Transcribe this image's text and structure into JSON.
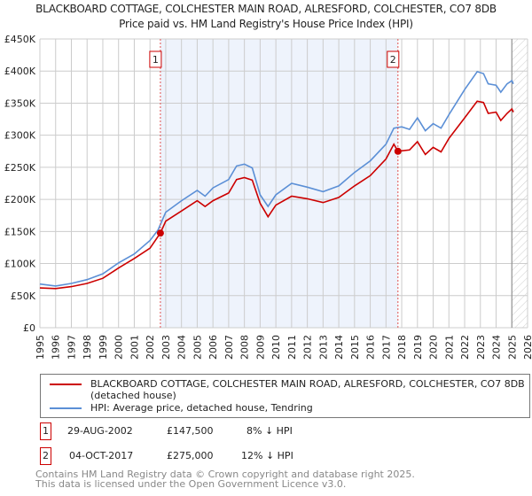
{
  "title": "BLACKBOARD COTTAGE, COLCHESTER MAIN ROAD, ALRESFORD, COLCHESTER, CO7 8DB",
  "subtitle": "Price paid vs. HM Land Registry's House Price Index (HPI)",
  "chart_data": {
    "type": "line",
    "xlim": [
      1995,
      2026
    ],
    "ylim": [
      0,
      450000
    ],
    "x_ticks": [
      "1995",
      "1996",
      "1997",
      "1998",
      "1999",
      "2000",
      "2001",
      "2002",
      "2003",
      "2004",
      "2005",
      "2006",
      "2007",
      "2008",
      "2009",
      "2010",
      "2011",
      "2012",
      "2013",
      "2014",
      "2015",
      "2016",
      "2017",
      "2018",
      "2019",
      "2020",
      "2021",
      "2022",
      "2023",
      "2024",
      "2025",
      "2026"
    ],
    "y_ticks": [
      {
        "v": 0,
        "label": "£0"
      },
      {
        "v": 50000,
        "label": "£50K"
      },
      {
        "v": 100000,
        "label": "£100K"
      },
      {
        "v": 150000,
        "label": "£150K"
      },
      {
        "v": 200000,
        "label": "£200K"
      },
      {
        "v": 250000,
        "label": "£250K"
      },
      {
        "v": 300000,
        "label": "£300K"
      },
      {
        "v": 350000,
        "label": "£350K"
      },
      {
        "v": 400000,
        "label": "£400K"
      },
      {
        "v": 450000,
        "label": "£450K"
      }
    ],
    "grid": true,
    "series": [
      {
        "name": "BLACKBOARD COTTAGE, COLCHESTER MAIN ROAD, ALRESFORD, COLCHESTER, CO7 8DB (detached house)",
        "color": "#cc0000",
        "x": [
          1995,
          1996,
          1997,
          1998,
          1999,
          2000,
          2001,
          2002,
          2002.66,
          2003,
          2004,
          2005,
          2005.5,
          2006,
          2007,
          2007.5,
          2008,
          2008.5,
          2009,
          2009.5,
          2010,
          2011,
          2012,
          2013,
          2014,
          2015,
          2016,
          2017,
          2017.5,
          2017.76,
          2018.5,
          2019,
          2019.5,
          2020,
          2020.5,
          2021,
          2022,
          2022.8,
          2023.2,
          2023.5,
          2024,
          2024.3,
          2024.7,
          2025,
          2025.1
        ],
        "y": [
          62000,
          61000,
          64000,
          69000,
          77000,
          93000,
          108000,
          124000,
          147500,
          166000,
          182000,
          198000,
          189000,
          198000,
          210000,
          231000,
          234000,
          230000,
          194000,
          173000,
          191000,
          205000,
          201000,
          195000,
          203000,
          221000,
          237000,
          263000,
          286000,
          275000,
          277000,
          290000,
          270000,
          281000,
          274000,
          295000,
          327000,
          353000,
          351000,
          334000,
          336000,
          323000,
          334000,
          341000,
          336000
        ]
      },
      {
        "name": "HPI: Average price, detached house, Tendring",
        "color": "#5b8fd6",
        "x": [
          1995,
          1996,
          1997,
          1998,
          1999,
          2000,
          2001,
          2002,
          2002.5,
          2003,
          2004,
          2005,
          2005.5,
          2006,
          2007,
          2007.5,
          2008,
          2008.5,
          2009,
          2009.5,
          2010,
          2011,
          2012,
          2013,
          2014,
          2015,
          2016,
          2017,
          2017.5,
          2018,
          2018.5,
          2019,
          2019.5,
          2020,
          2020.5,
          2021,
          2022,
          2022.8,
          2023.2,
          2023.5,
          2024,
          2024.3,
          2024.7,
          2025,
          2025.1
        ],
        "y": [
          68000,
          65000,
          69000,
          75000,
          84000,
          101000,
          115000,
          136000,
          152000,
          180000,
          198000,
          214000,
          205000,
          218000,
          231000,
          252000,
          255000,
          249000,
          207000,
          189000,
          207000,
          225000,
          219000,
          212000,
          221000,
          242000,
          260000,
          286000,
          311000,
          313000,
          309000,
          327000,
          307000,
          318000,
          311000,
          332000,
          371000,
          399000,
          396000,
          380000,
          378000,
          367000,
          380000,
          385000,
          380000
        ]
      }
    ],
    "annotations": [
      {
        "label": "1",
        "x": 2002.66,
        "y": 147500
      },
      {
        "label": "2",
        "x": 2017.76,
        "y": 275000
      }
    ],
    "shaded_range": [
      2002.66,
      2017.76
    ],
    "forecast_hatch_from": 2025.0,
    "legend_placement": "bottom"
  },
  "legend": [
    {
      "label": "BLACKBOARD COTTAGE, COLCHESTER MAIN ROAD, ALRESFORD, COLCHESTER, CO7 8DB (detached house)",
      "color": "#cc0000"
    },
    {
      "label": "HPI: Average price, detached house, Tendring",
      "color": "#5b8fd6"
    }
  ],
  "transactions": [
    {
      "num": "1",
      "date": "29-AUG-2002",
      "price": "£147,500",
      "hpi": "8% ↓ HPI"
    },
    {
      "num": "2",
      "date": "04-OCT-2017",
      "price": "£275,000",
      "hpi": "12% ↓ HPI"
    }
  ],
  "footer": [
    "Contains HM Land Registry data © Crown copyright and database right 2025.",
    "This data is licensed under the Open Government Licence v3.0."
  ]
}
